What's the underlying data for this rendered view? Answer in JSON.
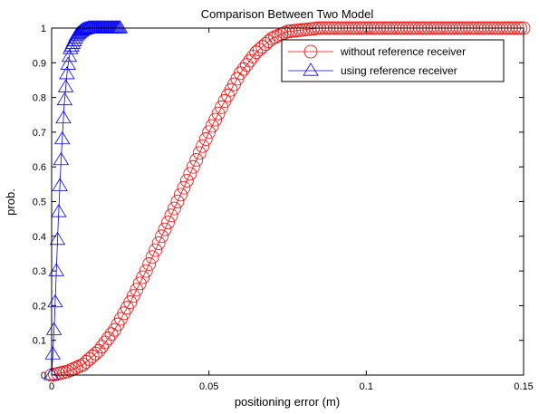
{
  "chart_data": {
    "type": "line",
    "title": "Comparison Between Two Model",
    "xlabel": "positioning error (m)",
    "ylabel": "prob.",
    "xlim": [
      0,
      0.15
    ],
    "ylim": [
      0,
      1
    ],
    "xticks": [
      0,
      0.05,
      0.1,
      0.15
    ],
    "xtick_labels": [
      "0",
      "0.05",
      "0.1",
      "0.15"
    ],
    "yticks": [
      0,
      0.1,
      0.2,
      0.3,
      0.4,
      0.5,
      0.6,
      0.7,
      0.8,
      0.9,
      1
    ],
    "ytick_labels": [
      "0",
      "0.1",
      "0.2",
      "0.3",
      "0.4",
      "0.5",
      "0.6",
      "0.7",
      "0.8",
      "0.9",
      "1"
    ],
    "grid": false,
    "legend_position": "top-right",
    "series": [
      {
        "name": "without reference receiver",
        "color": "#ff0000",
        "marker": "circle",
        "x": [
          0.0,
          0.005,
          0.01,
          0.015,
          0.02,
          0.025,
          0.03,
          0.035,
          0.04,
          0.045,
          0.05,
          0.055,
          0.06,
          0.065,
          0.07,
          0.075,
          0.08,
          0.085,
          0.09,
          0.1,
          0.11,
          0.12,
          0.13,
          0.14,
          0.15
        ],
        "y": [
          0.0,
          0.01,
          0.03,
          0.07,
          0.13,
          0.21,
          0.3,
          0.4,
          0.5,
          0.6,
          0.7,
          0.79,
          0.87,
          0.93,
          0.97,
          0.99,
          0.995,
          1.0,
          1.0,
          1.0,
          1.0,
          1.0,
          1.0,
          1.0,
          1.0
        ]
      },
      {
        "name": "using reference receiver",
        "color": "#0000ff",
        "marker": "triangle",
        "x": [
          0.0,
          0.0005,
          0.001,
          0.0015,
          0.002,
          0.003,
          0.004,
          0.005,
          0.006,
          0.008,
          0.01,
          0.012,
          0.015,
          0.018,
          0.022
        ],
        "y": [
          0.0,
          0.08,
          0.18,
          0.3,
          0.42,
          0.62,
          0.78,
          0.88,
          0.94,
          0.98,
          0.995,
          1.0,
          1.0,
          1.0,
          1.0
        ]
      }
    ]
  }
}
